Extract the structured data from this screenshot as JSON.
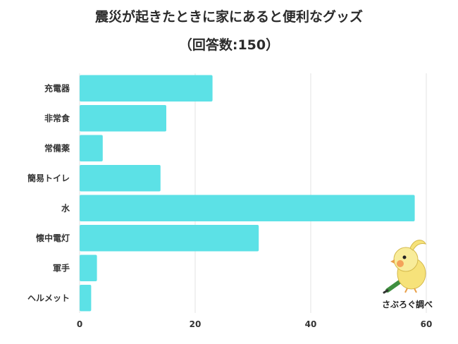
{
  "chart_data": {
    "type": "bar",
    "orientation": "horizontal",
    "title": "震災が起きたときに家にあると便利なグッズ",
    "subtitle": "（回答数:150）",
    "categories": [
      "充電器",
      "非常食",
      "常備薬",
      "簡易トイレ",
      "水",
      "懐中電灯",
      "軍手",
      "ヘルメット"
    ],
    "values": [
      23,
      15,
      4,
      14,
      58,
      31,
      3,
      2
    ],
    "xlim": [
      0,
      60
    ],
    "xticks": [
      0,
      20,
      40,
      60
    ],
    "grid": true,
    "legend": "none",
    "bar_color": "#5ce1e6",
    "grid_color": "#e3e3e3"
  },
  "brand": {
    "text": "さぶろぐ調べ",
    "icon": "cockatiel-mascot-icon"
  }
}
